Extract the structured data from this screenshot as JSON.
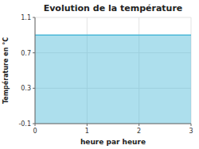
{
  "chart_data": {
    "type": "area",
    "title": "Evolution de la température",
    "x_label": "heure par heure",
    "y_label": "Température en °C",
    "x": [
      0,
      3
    ],
    "values": [
      0.9,
      0.9
    ],
    "color": "#4ab8d8",
    "xlim": [
      0,
      3
    ],
    "ylim": [
      -0.1,
      1.1
    ],
    "xticks": [
      0,
      1,
      2,
      3
    ],
    "yticks": [
      -0.1,
      0.3,
      0.7,
      1.1
    ],
    "grid": true
  }
}
